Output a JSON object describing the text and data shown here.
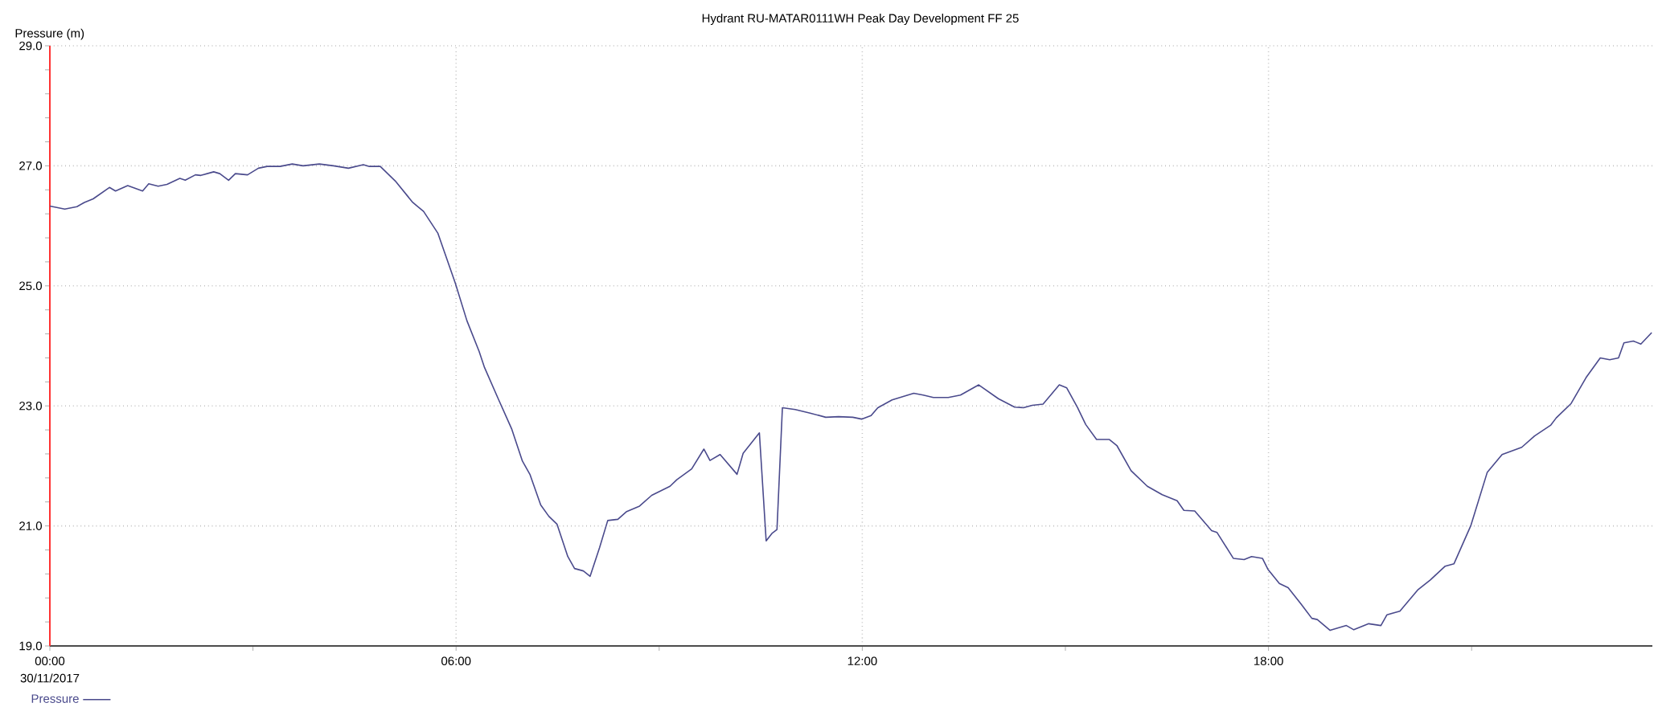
{
  "chart_data": {
    "type": "line",
    "title": "Hydrant RU-MATAR0111WH Peak Day Development FF 25",
    "ylabel": "Pressure (m)",
    "annotations": [
      "30/11/2017"
    ],
    "xlim": [
      0,
      23.67
    ],
    "xticks": [
      {
        "value": 0,
        "label": "00:00"
      },
      {
        "value": 3,
        "label": null
      },
      {
        "value": 6,
        "label": "06:00"
      },
      {
        "value": 9,
        "label": null
      },
      {
        "value": 12,
        "label": "12:00"
      },
      {
        "value": 15,
        "label": null
      },
      {
        "value": 18,
        "label": "18:00"
      },
      {
        "value": 21,
        "label": null
      }
    ],
    "ylim": [
      19,
      29
    ],
    "yticks": [
      {
        "value": 19,
        "label": "19.0"
      },
      {
        "value": 19.4,
        "label": null
      },
      {
        "value": 19.8,
        "label": null
      },
      {
        "value": 20.2,
        "label": null
      },
      {
        "value": 20.6,
        "label": null
      },
      {
        "value": 21,
        "label": "21.0"
      },
      {
        "value": 21.4,
        "label": null
      },
      {
        "value": 21.8,
        "label": null
      },
      {
        "value": 22.2,
        "label": null
      },
      {
        "value": 22.6,
        "label": null
      },
      {
        "value": 23,
        "label": "23.0"
      },
      {
        "value": 23.4,
        "label": null
      },
      {
        "value": 23.8,
        "label": null
      },
      {
        "value": 24.2,
        "label": null
      },
      {
        "value": 24.6,
        "label": null
      },
      {
        "value": 25,
        "label": "25.0"
      },
      {
        "value": 25.4,
        "label": null
      },
      {
        "value": 25.8,
        "label": null
      },
      {
        "value": 26.2,
        "label": null
      },
      {
        "value": 26.6,
        "label": null
      },
      {
        "value": 27,
        "label": "27.0"
      },
      {
        "value": 27.4,
        "label": null
      },
      {
        "value": 27.8,
        "label": null
      },
      {
        "value": 28.2,
        "label": null
      },
      {
        "value": 28.6,
        "label": null
      },
      {
        "value": 29,
        "label": "29.0"
      }
    ],
    "grid": true,
    "legend": "bottom left",
    "series": [
      {
        "name": "Pressure",
        "color": "#4a4a8c",
        "x": [
          0,
          0.22,
          0.4,
          0.51,
          0.64,
          0.88,
          0.97,
          1.15,
          1.37,
          1.46,
          1.6,
          1.73,
          1.92,
          2.0,
          2.15,
          2.23,
          2.42,
          2.51,
          2.64,
          2.74,
          2.92,
          3.08,
          3.21,
          3.4,
          3.58,
          3.74,
          3.98,
          4.19,
          4.41,
          4.63,
          4.72,
          4.88,
          5.1,
          5.36,
          5.52,
          5.73,
          5.99,
          6.16,
          6.34,
          6.42,
          6.63,
          6.82,
          6.98,
          7.09,
          7.25,
          7.37,
          7.49,
          7.65,
          7.75,
          7.88,
          7.98,
          8.12,
          8.24,
          8.39,
          8.52,
          8.71,
          8.89,
          9.16,
          9.26,
          9.48,
          9.66,
          9.75,
          9.9,
          10.15,
          10.24,
          10.48,
          10.58,
          10.67,
          10.74,
          10.82,
          11.01,
          11.23,
          11.46,
          11.65,
          11.86,
          11.99,
          12.13,
          12.23,
          12.44,
          12.76,
          12.9,
          13.05,
          13.27,
          13.45,
          13.72,
          14.01,
          14.25,
          14.38,
          14.51,
          14.67,
          14.91,
          15.02,
          15.18,
          15.3,
          15.46,
          15.65,
          15.76,
          15.97,
          16.21,
          16.43,
          16.65,
          16.75,
          16.91,
          17.16,
          17.24,
          17.48,
          17.64,
          17.75,
          17.91,
          17.99,
          18.16,
          18.29,
          18.48,
          18.64,
          18.72,
          18.91,
          19.15,
          19.26,
          19.48,
          19.66,
          19.75,
          19.94,
          20.21,
          20.39,
          20.61,
          20.74,
          20.99,
          21.23,
          21.45,
          21.74,
          21.93,
          22.17,
          22.25,
          22.47,
          22.69,
          22.9,
          23.04,
          23.17,
          23.25,
          23.39,
          23.5,
          23.66
        ],
        "values": [
          26.33,
          26.28,
          26.32,
          26.39,
          26.45,
          26.64,
          26.58,
          26.67,
          26.58,
          26.7,
          26.66,
          26.69,
          26.79,
          26.76,
          26.85,
          26.84,
          26.9,
          26.87,
          26.76,
          26.87,
          26.85,
          26.96,
          26.99,
          26.99,
          27.03,
          27.0,
          27.03,
          27.0,
          26.96,
          27.02,
          26.99,
          26.99,
          26.75,
          26.39,
          26.24,
          25.88,
          25.04,
          24.42,
          23.91,
          23.64,
          23.1,
          22.62,
          22.08,
          21.86,
          21.35,
          21.16,
          21.03,
          20.49,
          20.29,
          20.25,
          20.16,
          20.64,
          21.09,
          21.11,
          21.24,
          21.33,
          21.51,
          21.66,
          21.77,
          21.95,
          22.28,
          22.09,
          22.19,
          21.86,
          22.21,
          22.55,
          20.75,
          20.88,
          20.94,
          22.97,
          22.94,
          22.88,
          22.81,
          22.82,
          22.81,
          22.78,
          22.84,
          22.97,
          23.1,
          23.21,
          23.18,
          23.14,
          23.14,
          23.18,
          23.35,
          23.12,
          22.98,
          22.97,
          23.01,
          23.03,
          23.35,
          23.3,
          22.97,
          22.69,
          22.44,
          22.44,
          22.34,
          21.92,
          21.66,
          21.52,
          21.42,
          21.26,
          21.25,
          20.92,
          20.89,
          20.46,
          20.44,
          20.49,
          20.46,
          20.28,
          20.04,
          19.97,
          19.7,
          19.46,
          19.44,
          19.26,
          19.34,
          19.27,
          19.37,
          19.34,
          19.52,
          19.58,
          19.94,
          20.1,
          20.33,
          20.37,
          21.01,
          21.89,
          22.19,
          22.31,
          22.5,
          22.68,
          22.8,
          23.04,
          23.47,
          23.8,
          23.77,
          23.8,
          24.05,
          24.08,
          24.03,
          24.22
        ]
      }
    ]
  }
}
